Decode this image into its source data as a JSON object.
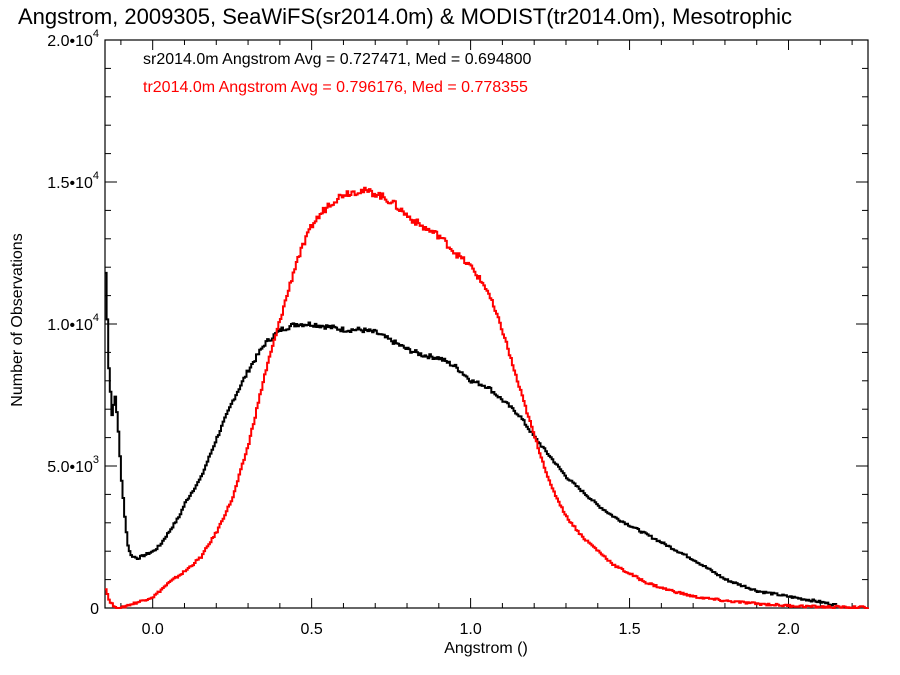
{
  "chart_data": {
    "type": "line",
    "title": "Angstrom, 2009305, SeaWiFS(sr2014.0m) & MODIST(tr2014.0m), Mesotrophic",
    "xlabel": "Angstrom ()",
    "ylabel": "Number of Observations",
    "xlim": [
      -0.15,
      2.25
    ],
    "ylim": [
      0,
      20000
    ],
    "x_ticks": [
      {
        "value": 0.0,
        "label": "0.0"
      },
      {
        "value": 0.5,
        "label": "0.5"
      },
      {
        "value": 1.0,
        "label": "1.0"
      },
      {
        "value": 1.5,
        "label": "1.5"
      },
      {
        "value": 2.0,
        "label": "2.0"
      }
    ],
    "y_ticks": [
      {
        "value": 0,
        "mantissa": "0",
        "exp": ""
      },
      {
        "value": 5000,
        "mantissa": "5.0•10",
        "exp": "3"
      },
      {
        "value": 10000,
        "mantissa": "1.0•10",
        "exp": "4"
      },
      {
        "value": 15000,
        "mantissa": "1.5•10",
        "exp": "4"
      },
      {
        "value": 20000,
        "mantissa": "2.0•10",
        "exp": "4"
      }
    ],
    "grid": false,
    "series": [
      {
        "name": "sr2014.0m",
        "color": "#000000",
        "stat_label": "sr2014.0m Angstrom Avg = 0.727471, Med = 0.694800",
        "points": [
          [
            -0.15,
            11800
          ],
          [
            -0.14,
            8500
          ],
          [
            -0.13,
            6800
          ],
          [
            -0.12,
            7500
          ],
          [
            -0.11,
            6200
          ],
          [
            -0.1,
            4500
          ],
          [
            -0.09,
            3200
          ],
          [
            -0.08,
            2200
          ],
          [
            -0.07,
            1850
          ],
          [
            -0.05,
            1750
          ],
          [
            -0.02,
            1900
          ],
          [
            0.0,
            2000
          ],
          [
            0.02,
            2200
          ],
          [
            0.05,
            2700
          ],
          [
            0.08,
            3200
          ],
          [
            0.1,
            3700
          ],
          [
            0.15,
            4600
          ],
          [
            0.2,
            6000
          ],
          [
            0.25,
            7300
          ],
          [
            0.3,
            8400
          ],
          [
            0.35,
            9300
          ],
          [
            0.4,
            9800
          ],
          [
            0.45,
            10000
          ],
          [
            0.5,
            10000
          ],
          [
            0.55,
            9900
          ],
          [
            0.6,
            9800
          ],
          [
            0.65,
            9800
          ],
          [
            0.7,
            9700
          ],
          [
            0.75,
            9400
          ],
          [
            0.8,
            9100
          ],
          [
            0.85,
            8900
          ],
          [
            0.9,
            8800
          ],
          [
            0.95,
            8500
          ],
          [
            1.0,
            8000
          ],
          [
            1.05,
            7800
          ],
          [
            1.1,
            7300
          ],
          [
            1.15,
            6800
          ],
          [
            1.2,
            6000
          ],
          [
            1.25,
            5300
          ],
          [
            1.3,
            4600
          ],
          [
            1.35,
            4100
          ],
          [
            1.4,
            3600
          ],
          [
            1.45,
            3200
          ],
          [
            1.5,
            2900
          ],
          [
            1.55,
            2600
          ],
          [
            1.6,
            2300
          ],
          [
            1.7,
            1700
          ],
          [
            1.8,
            1000
          ],
          [
            1.9,
            600
          ],
          [
            2.0,
            400
          ],
          [
            2.08,
            250
          ],
          [
            2.15,
            100
          ]
        ]
      },
      {
        "name": "tr2014.0m",
        "color": "#ff0000",
        "stat_label": "tr2014.0m Angstrom Avg = 0.796176, Med = 0.778355",
        "points": [
          [
            -0.15,
            700
          ],
          [
            -0.14,
            300
          ],
          [
            -0.12,
            0
          ],
          [
            -0.1,
            0
          ],
          [
            -0.08,
            100
          ],
          [
            -0.05,
            200
          ],
          [
            0.0,
            400
          ],
          [
            0.05,
            900
          ],
          [
            0.1,
            1300
          ],
          [
            0.15,
            1800
          ],
          [
            0.2,
            2700
          ],
          [
            0.25,
            3900
          ],
          [
            0.3,
            5800
          ],
          [
            0.35,
            8200
          ],
          [
            0.4,
            10200
          ],
          [
            0.45,
            12200
          ],
          [
            0.5,
            13500
          ],
          [
            0.55,
            14200
          ],
          [
            0.6,
            14600
          ],
          [
            0.65,
            14700
          ],
          [
            0.7,
            14600
          ],
          [
            0.75,
            14300
          ],
          [
            0.8,
            13800
          ],
          [
            0.85,
            13400
          ],
          [
            0.9,
            13100
          ],
          [
            0.95,
            12500
          ],
          [
            1.0,
            12000
          ],
          [
            1.05,
            11200
          ],
          [
            1.1,
            9700
          ],
          [
            1.15,
            7800
          ],
          [
            1.2,
            6000
          ],
          [
            1.25,
            4300
          ],
          [
            1.3,
            3200
          ],
          [
            1.35,
            2500
          ],
          [
            1.4,
            2000
          ],
          [
            1.45,
            1500
          ],
          [
            1.5,
            1200
          ],
          [
            1.55,
            900
          ],
          [
            1.6,
            700
          ],
          [
            1.7,
            400
          ],
          [
            1.8,
            250
          ],
          [
            1.9,
            150
          ],
          [
            2.0,
            80
          ],
          [
            2.1,
            40
          ],
          [
            2.25,
            20
          ]
        ]
      }
    ]
  }
}
